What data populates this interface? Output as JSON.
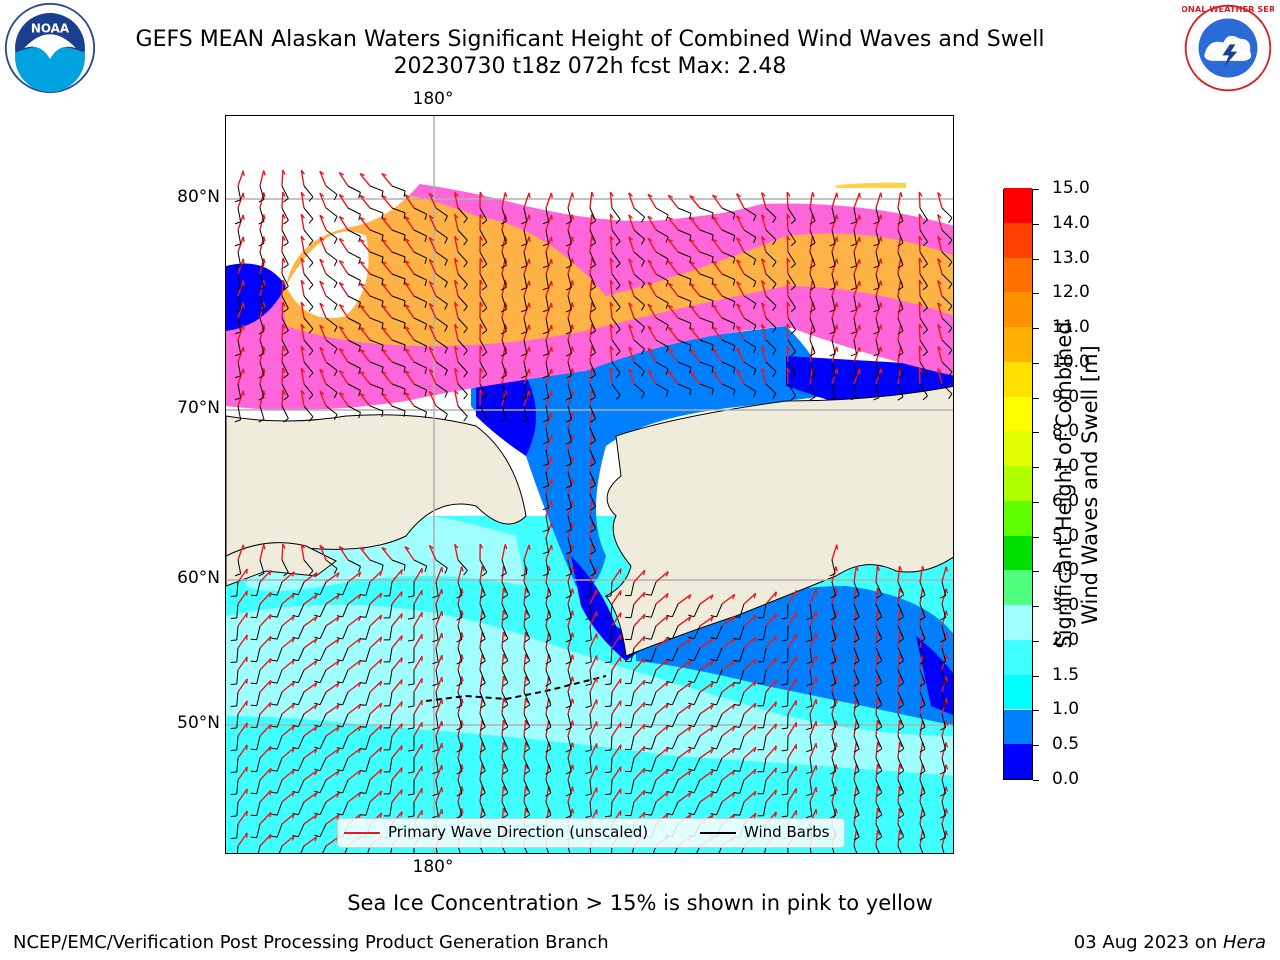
{
  "header": {
    "title_line1": "GEFS MEAN Alaskan Waters Significant Height of Combined Wind Waves and Swell",
    "title_line2": "20230730 t18z 072h fcst   Max: 2.48"
  },
  "logos": {
    "left": {
      "name": "noaa-logo",
      "text": "NOAA"
    },
    "right": {
      "name": "nws-logo",
      "text": "NATIONAL WEATHER SERVICE"
    }
  },
  "map": {
    "lon_label_top": "180°",
    "lon_label_bottom": "180°",
    "lat_labels": [
      {
        "text": "80°N",
        "lat": 80
      },
      {
        "text": "70°N",
        "lat": 70
      },
      {
        "text": "60°N",
        "lat": 60
      },
      {
        "text": "50°N",
        "lat": 50
      }
    ],
    "colors": {
      "land": "#efecdc",
      "grid": "#b0b0b0",
      "wave_arrow": "#e8181c",
      "wind_barb": "#000000",
      "ice_pink": "#ff66d9",
      "ice_orange": "#ffb347"
    }
  },
  "legend": {
    "items": [
      {
        "label": "Primary Wave Direction (unscaled)",
        "color": "#e8181c"
      },
      {
        "label": "Wind Barbs",
        "color": "#000000"
      }
    ]
  },
  "colorbar": {
    "label_line1": "Significant Height of Combined",
    "label_line2": "Wind Waves and Swell [m]",
    "ticks": [
      "0.0",
      "0.5",
      "1.0",
      "1.5",
      "2.0",
      "3.0",
      "4.0",
      "5.0",
      "6.0",
      "7.0",
      "8.0",
      "9.0",
      "10.0",
      "11.0",
      "12.0",
      "13.0",
      "14.0",
      "15.0"
    ],
    "colors": [
      "#0000ff",
      "#0080ff",
      "#00ffff",
      "#40ffff",
      "#a0ffff",
      "#50ff80",
      "#00e000",
      "#60ff00",
      "#b0ff00",
      "#e0ff00",
      "#ffff00",
      "#ffe000",
      "#ffb000",
      "#ff9000",
      "#ff7000",
      "#ff4000",
      "#ff0000"
    ]
  },
  "note": "Sea Ice Concentration > 15% is shown in pink to yellow",
  "footer": {
    "left": "NCEP/EMC/Verification Post Processing Product Generation Branch",
    "right_prefix": "03 Aug 2023 on ",
    "right_machine": "Hera"
  }
}
